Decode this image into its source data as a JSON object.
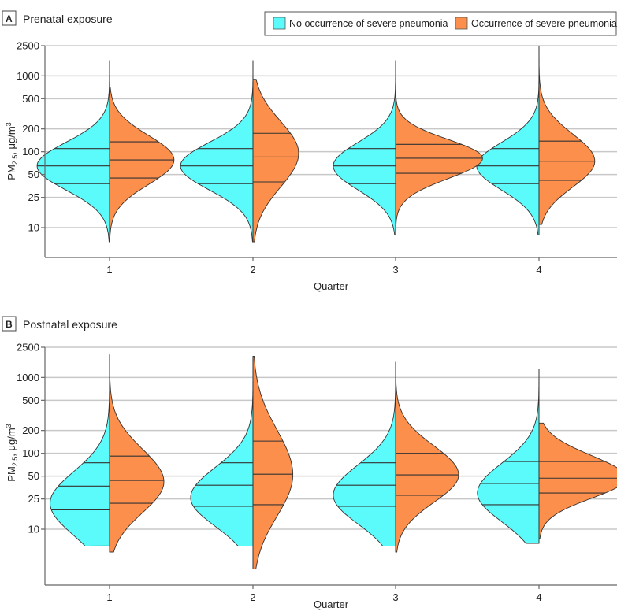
{
  "legend": {
    "items": [
      {
        "label": "No occurrence of severe pneumonia",
        "color": "#5cfbfb"
      },
      {
        "label": "Occurrence of severe pneumonia",
        "color": "#fc8f4b"
      }
    ]
  },
  "chart_data": [
    {
      "type": "violin",
      "panel_letter": "A",
      "title": "Prenatal exposure",
      "xlabel": "Quarter",
      "ylabel": "PM2.5, μg/m3",
      "ylabel_parts": {
        "base": "PM",
        "sub": "2.5",
        "unit": ", μg/m",
        "sup": "3"
      },
      "yscale": "log",
      "yticks": [
        10,
        25,
        50,
        100,
        200,
        500,
        1000,
        2500
      ],
      "ylim": [
        4,
        2500
      ],
      "grid": true,
      "categories": [
        "1",
        "2",
        "3",
        "4"
      ],
      "series": [
        {
          "name": "No occurrence of severe pneumonia",
          "side": "left",
          "quartiles": [
            [
              38,
              65,
              110
            ],
            [
              38,
              65,
              110
            ],
            [
              38,
              65,
              110
            ],
            [
              38,
              65,
              110
            ]
          ],
          "range": [
            [
              6.5,
              1600
            ],
            [
              6.5,
              1600
            ],
            [
              8,
              1600
            ],
            [
              8,
              2500
            ]
          ],
          "peak": [
            65,
            65,
            65,
            65
          ],
          "rel_width": [
            1.0,
            1.0,
            0.86,
            0.86
          ]
        },
        {
          "name": "Occurrence of severe pneumonia",
          "side": "right",
          "quartiles": [
            [
              45,
              78,
              135
            ],
            [
              40,
              85,
              175
            ],
            [
              52,
              82,
              125
            ],
            [
              42,
              75,
              138
            ]
          ],
          "range": [
            [
              6.5,
              700
            ],
            [
              6.5,
              900
            ],
            [
              9.5,
              500
            ],
            [
              11,
              2500
            ]
          ],
          "peak": [
            78,
            95,
            82,
            75
          ],
          "rel_width": [
            0.89,
            0.63,
            1.2,
            0.77
          ]
        }
      ]
    },
    {
      "type": "violin",
      "panel_letter": "B",
      "title": "Postnatal exposure",
      "xlabel": "Quarter",
      "ylabel": "PM2.5, μg/m3",
      "ylabel_parts": {
        "base": "PM",
        "sub": "2.5",
        "unit": ", μg/m",
        "sup": "3"
      },
      "yscale": "log",
      "yticks": [
        10,
        25,
        50,
        100,
        200,
        500,
        1000,
        2500
      ],
      "ylim": [
        2.5,
        2500
      ],
      "grid": true,
      "categories": [
        "1",
        "2",
        "3",
        "4"
      ],
      "series": [
        {
          "name": "No occurrence of severe pneumonia",
          "side": "left",
          "quartiles": [
            [
              18,
              37,
              75
            ],
            [
              20,
              38,
              75
            ],
            [
              20,
              38,
              75
            ],
            [
              21,
              40,
              78
            ]
          ],
          "range": [
            [
              6,
              2000
            ],
            [
              6,
              1900
            ],
            [
              6,
              1600
            ],
            [
              6.5,
              1300
            ]
          ],
          "peak": [
            22,
            26,
            28,
            30
          ],
          "rel_width": [
            0.82,
            0.86,
            0.86,
            0.85
          ]
        },
        {
          "name": "Occurrence of severe pneumonia",
          "side": "right",
          "quartiles": [
            [
              22,
              44,
              92
            ],
            [
              21,
              53,
              145
            ],
            [
              28,
              52,
              100
            ],
            [
              30,
              47,
              78
            ]
          ],
          "range": [
            [
              5,
              1000
            ],
            [
              3,
              1900
            ],
            [
              5,
              1000
            ],
            [
              7.5,
              250
            ]
          ],
          "peak": [
            42,
            52,
            52,
            47
          ],
          "rel_width": [
            0.75,
            0.55,
            0.87,
            1.2
          ]
        }
      ]
    }
  ]
}
